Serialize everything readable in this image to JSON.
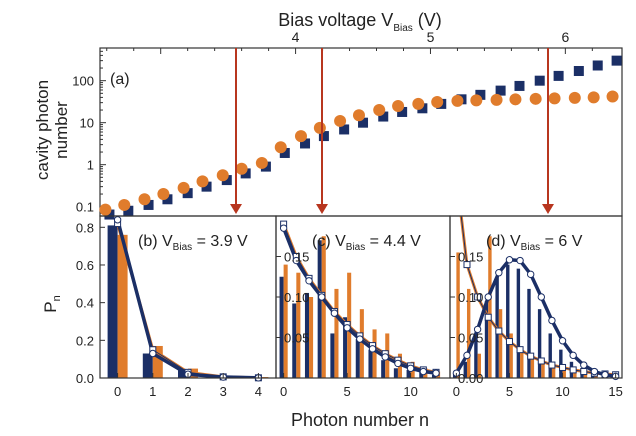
{
  "colors": {
    "navy": "#1b2f66",
    "orange": "#e07c2c",
    "arrow": "#b8361f",
    "axis": "#333333"
  },
  "chart_data": [
    {
      "id": "a",
      "type": "scatter",
      "panel_label": "(a)",
      "ylabel_line1": "cavity photon",
      "ylabel_line2": "number",
      "top_xlabel_main": "Bias voltage V",
      "top_xlabel_sub": "Bias",
      "top_xlabel_unit": " (V)",
      "yscale": "log",
      "ylim": [
        0.06,
        600
      ],
      "xlim": [
        2.55,
        6.42
      ],
      "yticks": [
        0.1,
        1,
        10,
        100
      ],
      "yticklabels": [
        "0.1",
        "1",
        "10",
        "100"
      ],
      "xticks_top": [
        4,
        5,
        6
      ],
      "xticklabels_top": [
        "4",
        "5",
        "6"
      ],
      "series": [
        {
          "marker": "square",
          "color": "navy",
          "x": [
            2.62,
            2.76,
            2.91,
            3.05,
            3.2,
            3.34,
            3.49,
            3.63,
            3.78,
            3.92,
            4.07,
            4.21,
            4.36,
            4.5,
            4.65,
            4.79,
            4.94,
            5.08,
            5.23,
            5.37,
            5.52,
            5.66,
            5.81,
            5.95,
            6.1,
            6.24,
            6.38
          ],
          "y": [
            0.065,
            0.08,
            0.11,
            0.15,
            0.21,
            0.3,
            0.43,
            0.62,
            0.9,
            1.9,
            3.2,
            4.8,
            6.9,
            10,
            14,
            18,
            22,
            28,
            36,
            46,
            58,
            75,
            100,
            130,
            170,
            230,
            300
          ]
        },
        {
          "marker": "circle",
          "color": "orange",
          "x": [
            2.59,
            2.73,
            2.88,
            3.02,
            3.17,
            3.31,
            3.46,
            3.6,
            3.75,
            3.89,
            4.04,
            4.18,
            4.33,
            4.47,
            4.62,
            4.76,
            4.91,
            5.05,
            5.2,
            5.34,
            5.49,
            5.63,
            5.78,
            5.92,
            6.07,
            6.21,
            6.35
          ],
          "y": [
            0.085,
            0.11,
            0.15,
            0.2,
            0.28,
            0.4,
            0.56,
            0.8,
            1.1,
            2.6,
            4.8,
            7.5,
            11,
            15,
            20,
            25,
            28,
            31,
            33,
            34,
            35,
            36,
            37,
            38,
            39,
            40,
            42
          ]
        }
      ],
      "arrows_at_bias": [
        3.9,
        4.4,
        6.0
      ]
    },
    {
      "id": "b",
      "type": "bar",
      "label_main": "(b) V",
      "label_sub": "Bias",
      "label_val": " = 3.9 V",
      "ylabel_main": "P",
      "ylabel_sub": "n",
      "xlim": [
        -0.5,
        4.5
      ],
      "ylim": [
        0,
        0.86
      ],
      "yticks": [
        0,
        0.2,
        0.4,
        0.6,
        0.8
      ],
      "yticklabels": [
        "0.0",
        "0.2",
        "0.4",
        "0.6",
        "0.8"
      ],
      "xticks": [
        0,
        1,
        2,
        3,
        4
      ],
      "xticklabels": [
        "0",
        "1",
        "2",
        "3",
        "4"
      ],
      "n": [
        0,
        1,
        2,
        3,
        4
      ],
      "navy_bars": [
        0.81,
        0.13,
        0.04,
        0.01,
        0.005
      ],
      "orange_bars": [
        0.76,
        0.17,
        0.05,
        0.01,
        0.005
      ],
      "navy_fit": [
        0.84,
        0.13,
        0.02,
        0.005,
        0.001
      ],
      "orange_fit": [
        0.82,
        0.15,
        0.03,
        0.006,
        0.001
      ]
    },
    {
      "id": "c",
      "type": "bar",
      "label_main": "(c) V",
      "label_sub": "Bias",
      "label_val": " = 4.4 V",
      "xlim": [
        -0.6,
        13.1
      ],
      "ylim": [
        0,
        0.2
      ],
      "yticks": [
        0.05,
        0.1,
        0.15
      ],
      "yticklabels": [
        "0.05",
        "0.10",
        "0.15"
      ],
      "xticks": [
        0,
        5,
        10
      ],
      "xticklabels": [
        "0",
        "5",
        "10"
      ],
      "n": [
        0,
        1,
        2,
        3,
        4,
        5,
        6,
        7,
        8,
        9,
        10,
        11,
        12
      ],
      "navy_bars": [
        0.125,
        0.092,
        0.105,
        0.17,
        0.055,
        0.075,
        0.048,
        0.035,
        0.022,
        0.012,
        0.01,
        0.008,
        0.004
      ],
      "orange_bars": [
        0.14,
        0.13,
        0.1,
        0.175,
        0.11,
        0.13,
        0.085,
        0.06,
        0.055,
        0.03,
        0.02,
        0.012,
        0.008
      ],
      "navy_fit": [
        0.185,
        0.145,
        0.12,
        0.1,
        0.08,
        0.062,
        0.048,
        0.036,
        0.026,
        0.018,
        0.012,
        0.008,
        0.006
      ],
      "orange_fit": [
        0.19,
        0.15,
        0.123,
        0.102,
        0.082,
        0.066,
        0.052,
        0.04,
        0.03,
        0.022,
        0.015,
        0.01,
        0.007
      ]
    },
    {
      "id": "d",
      "type": "bar",
      "label_main": "(d) V",
      "label_sub": "Bias",
      "label_val": " = 6 V",
      "xlim": [
        -0.6,
        15.6
      ],
      "ylim": [
        0,
        0.2
      ],
      "yticks": [
        0,
        0.05,
        0.1,
        0.15
      ],
      "yticklabels": [
        "0.00",
        "0.05",
        "0.10",
        "0.15"
      ],
      "xticks": [
        0,
        5,
        10,
        15
      ],
      "xticklabels": [
        "0",
        "5",
        "10",
        "15"
      ],
      "n": [
        0,
        1,
        2,
        3,
        4,
        5,
        6,
        7,
        8,
        9,
        10,
        11,
        12,
        13,
        14,
        15
      ],
      "navy_bars": [
        0.005,
        0.02,
        0.055,
        0.095,
        0.125,
        0.14,
        0.135,
        0.11,
        0.085,
        0.055,
        0.035,
        0.02,
        0.012,
        0.006,
        0.004,
        0.002
      ],
      "orange_bars": [
        0.155,
        0.11,
        0.03,
        0.175,
        0.085,
        0.055,
        0.035,
        0.025,
        0.02,
        0.015,
        0.01,
        0.008,
        0.006,
        0.004,
        0.003,
        0.002
      ],
      "navy_fit": [
        0.006,
        0.028,
        0.06,
        0.1,
        0.13,
        0.146,
        0.145,
        0.128,
        0.1,
        0.071,
        0.046,
        0.028,
        0.016,
        0.008,
        0.004,
        0.002
      ],
      "orange_fit": [
        0.25,
        0.14,
        0.1,
        0.075,
        0.058,
        0.045,
        0.035,
        0.027,
        0.021,
        0.016,
        0.013,
        0.01,
        0.008,
        0.006,
        0.005,
        0.004
      ]
    }
  ],
  "xlabel_bottom": "Photon number  n"
}
